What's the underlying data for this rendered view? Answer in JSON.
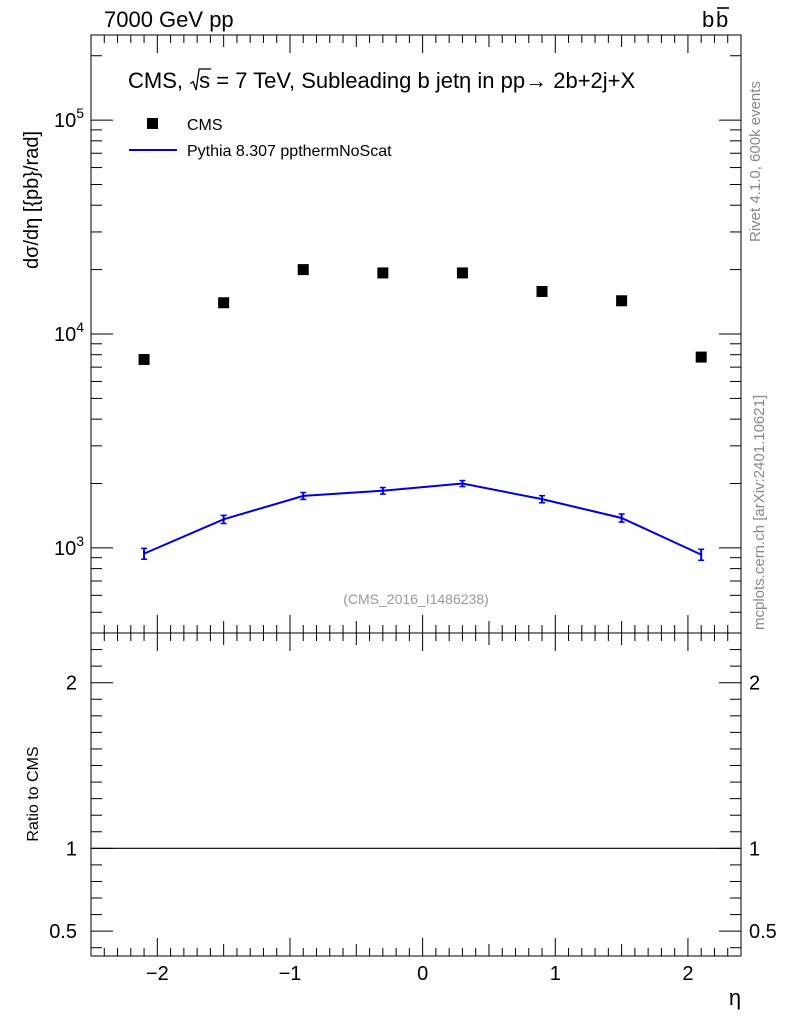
{
  "header": {
    "left_label": "7000 GeV pp",
    "right_label": "b",
    "right_label_bar": "b"
  },
  "side": {
    "rivet": "Rivet 4.1.0,  600k events",
    "mcplots": "mcplots.cern.ch [arXiv:2401.10621]"
  },
  "chart_data": {
    "type": "scatter",
    "title_prefix": "CMS, ",
    "title_sqrt": "s",
    "title_rest": " = 7 TeV, Subleading b jetη in pp→  2b+2j+X",
    "xlabel": "η",
    "ylabel": "dσ/dη [{pb}/rad]",
    "ratio_ylabel": "Ratio to CMS",
    "watermark": "(CMS_2016_I1486238)",
    "xlim": [
      -2.5,
      2.4
    ],
    "ylim": [
      400,
      250000
    ],
    "yscale": "log",
    "ratio_ylim": [
      0.35,
      2.3
    ],
    "x_ticks": [
      "-2",
      "-1",
      "0",
      "1",
      "2"
    ],
    "x_tick_values": [
      -2,
      -1,
      0,
      1,
      2
    ],
    "y_ticks_main": [
      {
        "value": 1000,
        "base": "10",
        "exp": "3"
      },
      {
        "value": 10000,
        "base": "10",
        "exp": "4"
      },
      {
        "value": 100000,
        "base": "10",
        "exp": "5"
      }
    ],
    "y_ticks_ratio": [
      {
        "value": 0.5,
        "label": "0.5"
      },
      {
        "value": 1,
        "label": "1"
      },
      {
        "value": 2,
        "label": "2"
      }
    ],
    "legend_position": "top-left",
    "series": [
      {
        "name": "CMS",
        "kind": "markers",
        "color": "#000000",
        "x": [
          -2.1,
          -1.5,
          -0.9,
          -0.3,
          0.3,
          0.9,
          1.5,
          2.1
        ],
        "y": [
          7600,
          14000,
          20000,
          19300,
          19300,
          15800,
          14300,
          7800
        ]
      },
      {
        "name": "Pythia 8.307 ppthermNoScat",
        "kind": "line",
        "color": "#0000dd",
        "x": [
          -2.1,
          -1.5,
          -0.9,
          -0.3,
          0.3,
          0.9,
          1.5,
          2.1
        ],
        "y": [
          940,
          1360,
          1750,
          1850,
          2000,
          1690,
          1380,
          930
        ],
        "yerr": [
          55,
          60,
          65,
          65,
          65,
          65,
          60,
          55
        ]
      }
    ],
    "ratio_series": [
      {
        "name": "CMS",
        "value": 1
      }
    ]
  }
}
